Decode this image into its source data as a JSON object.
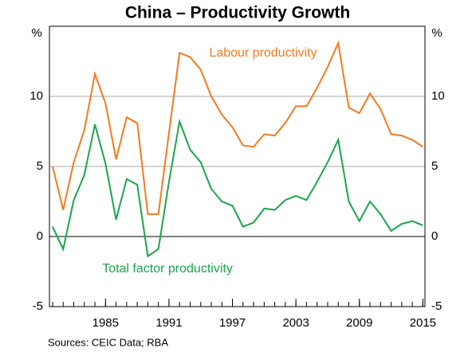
{
  "chart_data": {
    "type": "line",
    "title": "China – Productivity Growth",
    "y_unit": "%",
    "source": "Sources:  CEIC Data; RBA",
    "x": [
      1980,
      1981,
      1982,
      1983,
      1984,
      1985,
      1986,
      1987,
      1988,
      1989,
      1990,
      1991,
      1992,
      1993,
      1994,
      1995,
      1996,
      1997,
      1998,
      1999,
      2000,
      2001,
      2002,
      2003,
      2004,
      2005,
      2006,
      2007,
      2008,
      2009,
      2010,
      2011,
      2012,
      2013,
      2014,
      2015
    ],
    "series": [
      {
        "name": "Labour productivity",
        "color": "#f47a20",
        "values": [
          5.0,
          1.9,
          5.3,
          7.6,
          11.6,
          9.5,
          5.5,
          8.5,
          8.1,
          1.6,
          1.6,
          7.4,
          13.1,
          12.8,
          11.9,
          10.0,
          8.7,
          7.8,
          6.5,
          6.4,
          7.3,
          7.2,
          8.1,
          9.3,
          9.3,
          10.6,
          12.1,
          13.8,
          9.2,
          8.8,
          10.2,
          9.1,
          7.3,
          7.2,
          6.9,
          6.4
        ]
      },
      {
        "name": "Total factor productivity",
        "color": "#1aa64a",
        "values": [
          0.7,
          -0.9,
          2.6,
          4.4,
          8.0,
          5.2,
          1.2,
          4.1,
          3.7,
          -1.4,
          -0.9,
          3.9,
          8.2,
          6.2,
          5.3,
          3.4,
          2.5,
          2.2,
          0.7,
          1.0,
          2.0,
          1.9,
          2.6,
          2.9,
          2.6,
          3.9,
          5.3,
          6.9,
          2.5,
          1.1,
          2.5,
          1.6,
          0.4,
          0.9,
          1.1,
          0.8
        ]
      }
    ],
    "xlim": [
      1979.7,
      2015.2
    ],
    "xticks": [
      1985,
      1991,
      1997,
      2003,
      2009,
      2015
    ],
    "ylim": [
      -5,
      15
    ],
    "yticks": [
      -5,
      0,
      5,
      10
    ],
    "y2lim": [
      -5,
      15
    ],
    "y2ticks": [
      -5,
      0,
      5,
      10
    ],
    "grid": true
  }
}
